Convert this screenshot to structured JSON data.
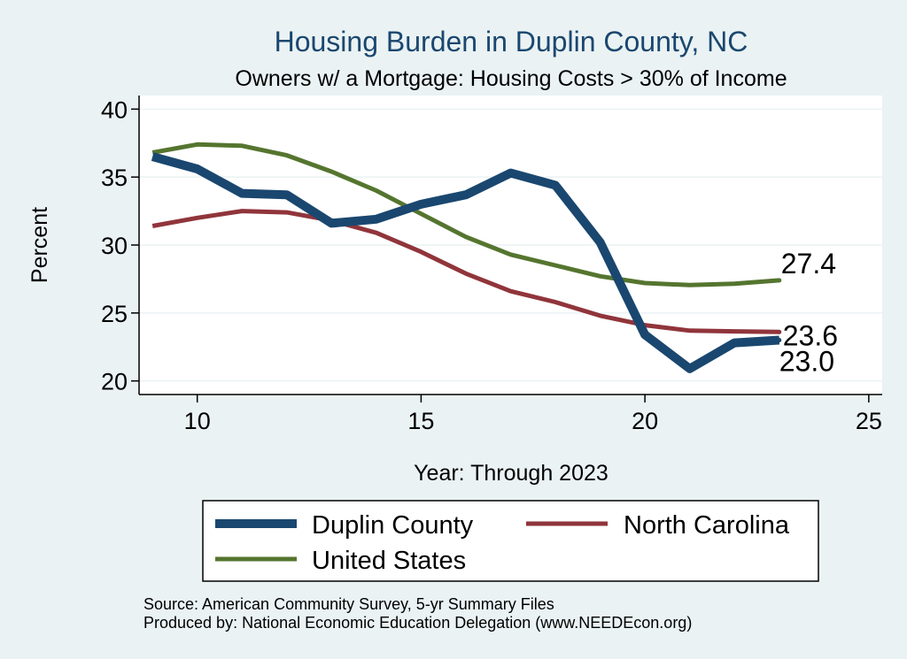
{
  "chart_data": {
    "type": "line",
    "title": "Housing Burden in Duplin County, NC",
    "subtitle": "Owners w/ a Mortgage: Housing Costs > 30% of Income",
    "xlabel": "Year: Through 2023",
    "ylabel": "Percent",
    "xlim": [
      8.7,
      25.3
    ],
    "ylim": [
      19,
      41
    ],
    "xticks": [
      10,
      15,
      20,
      25
    ],
    "yticks": [
      20,
      25,
      30,
      35,
      40
    ],
    "grid": true,
    "series": [
      {
        "name": "Duplin County",
        "color": "#1a476f",
        "width": "thick",
        "x": [
          9,
          10,
          11,
          12,
          13,
          14,
          15,
          16,
          17,
          18,
          19,
          20,
          21,
          22,
          23
        ],
        "values": [
          36.5,
          35.6,
          33.8,
          33.7,
          31.6,
          31.9,
          33.0,
          33.7,
          35.3,
          34.4,
          30.2,
          23.4,
          20.9,
          22.8,
          23.0
        ],
        "end_label": "23.0"
      },
      {
        "name": "North Carolina",
        "color": "#90353b",
        "width": "normal",
        "x": [
          9,
          10,
          11,
          12,
          13,
          14,
          15,
          16,
          17,
          18,
          19,
          20,
          21,
          22,
          23
        ],
        "values": [
          31.4,
          32.0,
          32.5,
          32.4,
          31.8,
          30.9,
          29.5,
          27.9,
          26.6,
          25.8,
          24.8,
          24.1,
          23.7,
          23.65,
          23.6
        ],
        "end_label": "23.6"
      },
      {
        "name": "United States",
        "color": "#55752f",
        "width": "normal",
        "x": [
          9,
          10,
          11,
          12,
          13,
          14,
          15,
          16,
          17,
          18,
          19,
          20,
          21,
          22,
          23
        ],
        "values": [
          36.8,
          37.4,
          37.3,
          36.6,
          35.4,
          34.0,
          32.3,
          30.6,
          29.3,
          28.5,
          27.7,
          27.2,
          27.05,
          27.15,
          27.4
        ],
        "end_label": "27.4"
      }
    ],
    "legend": {
      "placement": "bottom",
      "items": [
        "Duplin County",
        "North Carolina",
        "United States"
      ]
    }
  },
  "footer": {
    "source": "Source: American Community Survey, 5-yr Summary Files",
    "produced": "Produced by: National Economic Education Delegation (www.NEEDEcon.org)"
  }
}
